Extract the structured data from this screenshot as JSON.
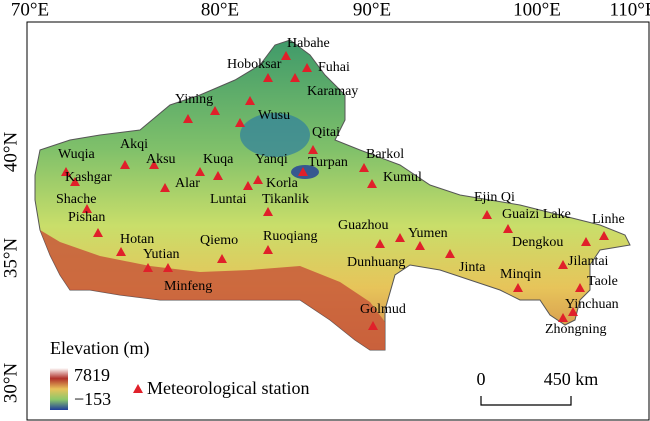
{
  "axes": {
    "longitude": [
      "70°E",
      "80°E",
      "90°E",
      "100°E",
      "110°E"
    ],
    "latitude": [
      "40°N",
      "35°N",
      "30°N"
    ]
  },
  "stations": [
    "Habahe",
    "Hoboksar",
    "Fuhai",
    "Karamay",
    "Yining",
    "Wusu",
    "Qitai",
    "Barkol",
    "Wuqia",
    "Akqi",
    "Aksu",
    "Kuqa",
    "Yanqi",
    "Turpan",
    "Kumul",
    "Kashgar",
    "Alar",
    "Korla",
    "Luntai",
    "Tikanlik",
    "Shache",
    "Pishan",
    "Ejin Qi",
    "Guaizi Lake",
    "Linhe",
    "Guazhou",
    "Yumen",
    "Ruoqiang",
    "Qiemo",
    "Hotan",
    "Yutian",
    "Dengkou",
    "Dunhuang",
    "Jinta",
    "Jilantai",
    "Minqin",
    "Minfeng",
    "Taole",
    "Golmud",
    "Yinchuan",
    "Zhongning"
  ],
  "legend": {
    "title": "Elevation (m)",
    "max": "7819",
    "min": "−153",
    "station": "Meteorological station"
  },
  "scale_bar": {
    "start": "0",
    "end": "450 km"
  }
}
